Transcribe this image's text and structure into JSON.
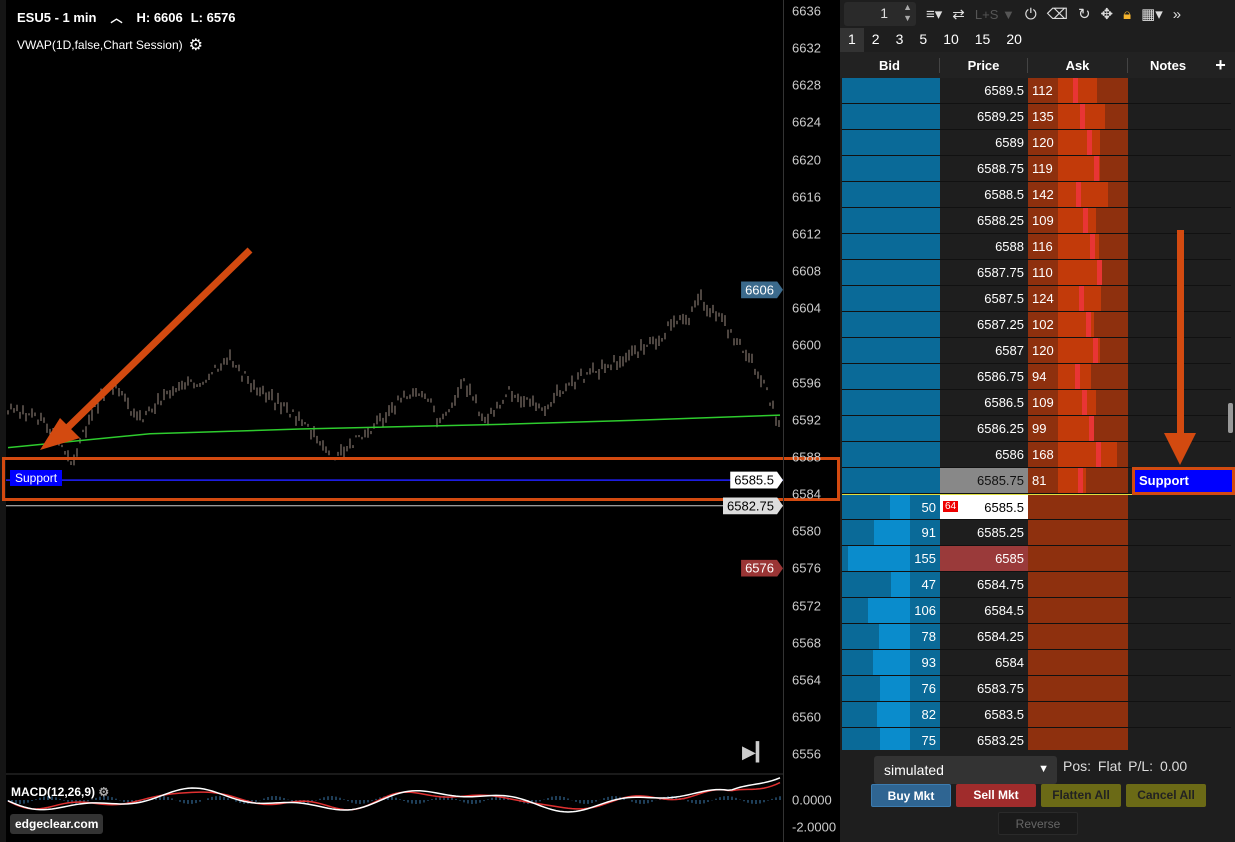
{
  "chart": {
    "symbol": "ESU5 - 1 min",
    "high": "H: 6606",
    "low": "L: 6576",
    "indicator": "VWAP(1D,false,Chart Session)",
    "price_ticks": [
      "6636",
      "6632",
      "6628",
      "6624",
      "6620",
      "6616",
      "6612",
      "6608",
      "6604",
      "6600",
      "6596",
      "6592",
      "6588",
      "6584",
      "6580",
      "6576",
      "6572",
      "6568",
      "6564",
      "6560",
      "6556"
    ],
    "tag_high": "6606",
    "tag_current": "6585.5",
    "tag_last": "6582.75",
    "tag_low": "6576",
    "support_label": "Support",
    "macd_label": "MACD(12,26,9)",
    "macd_ticks": [
      "0.0000",
      "-2.0000"
    ],
    "watermark": "edgeclear.com",
    "colors": {
      "vwap": "#2ecc2e",
      "support_line": "#2020ff",
      "annotation": "#d34a10",
      "macd": "#ffffff",
      "signal": "#e03030"
    },
    "price_series": [
      [
        8,
        6593
      ],
      [
        40,
        6592
      ],
      [
        60,
        6590
      ],
      [
        70,
        6587
      ],
      [
        85,
        6591
      ],
      [
        100,
        6594
      ],
      [
        110,
        6596
      ],
      [
        140,
        6592
      ],
      [
        170,
        6595
      ],
      [
        200,
        6596
      ],
      [
        228,
        6599
      ],
      [
        240,
        6597
      ],
      [
        260,
        6595
      ],
      [
        290,
        6593
      ],
      [
        320,
        6590
      ],
      [
        330,
        6588
      ],
      [
        360,
        6590
      ],
      [
        380,
        6592
      ],
      [
        410,
        6595
      ],
      [
        430,
        6594
      ],
      [
        440,
        6591.5
      ],
      [
        465,
        6596
      ],
      [
        485,
        6592
      ],
      [
        510,
        6595
      ],
      [
        540,
        6593
      ],
      [
        570,
        6596
      ],
      [
        610,
        6598
      ],
      [
        650,
        6600
      ],
      [
        670,
        6602
      ],
      [
        690,
        6603
      ],
      [
        700,
        6605
      ],
      [
        720,
        6603
      ],
      [
        740,
        6600
      ],
      [
        760,
        6597
      ],
      [
        780,
        6591
      ]
    ],
    "vwap_series": [
      [
        8,
        6589
      ],
      [
        150,
        6590.5
      ],
      [
        300,
        6591
      ],
      [
        500,
        6591.5
      ],
      [
        650,
        6592
      ],
      [
        780,
        6592.5
      ]
    ]
  },
  "dom": {
    "quantity": "1",
    "lsLabel": "L+S",
    "sizes": [
      "1",
      "2",
      "3",
      "5",
      "10",
      "15",
      "20"
    ],
    "headers": {
      "bid": "Bid",
      "price": "Price",
      "ask": "Ask",
      "notes": "Notes"
    },
    "asks": [
      [
        "6589.5",
        "112"
      ],
      [
        "6589.25",
        "135"
      ],
      [
        "6589",
        "120"
      ],
      [
        "6588.75",
        "119"
      ],
      [
        "6588.5",
        "142"
      ],
      [
        "6588.25",
        "109"
      ],
      [
        "6588",
        "116"
      ],
      [
        "6587.75",
        "110"
      ],
      [
        "6587.5",
        "124"
      ],
      [
        "6587.25",
        "102"
      ],
      [
        "6587",
        "120"
      ],
      [
        "6586.75",
        "94"
      ],
      [
        "6586.5",
        "109"
      ],
      [
        "6586.25",
        "99"
      ],
      [
        "6586",
        "168"
      ],
      [
        "6585.75",
        "81"
      ]
    ],
    "bids": [
      [
        "6585.5",
        "50"
      ],
      [
        "6585.25",
        "91"
      ],
      [
        "6585",
        "155"
      ],
      [
        "6584.75",
        "47"
      ],
      [
        "6584.5",
        "106"
      ],
      [
        "6584.25",
        "78"
      ],
      [
        "6584",
        "93"
      ],
      [
        "6583.75",
        "76"
      ],
      [
        "6583.5",
        "82"
      ],
      [
        "6583.25",
        "75"
      ]
    ],
    "last_trade_qty": "64",
    "note_support": "Support",
    "account": "simulated",
    "pos_label": "Pos:",
    "pos_value": "Flat",
    "pl_label": "P/L:",
    "pl_value": "0.00",
    "buttons": {
      "buy": "Buy Mkt",
      "sell": "Sell Mkt",
      "flatten": "Flatten All",
      "cancel": "Cancel All",
      "reverse": "Reverse"
    }
  }
}
